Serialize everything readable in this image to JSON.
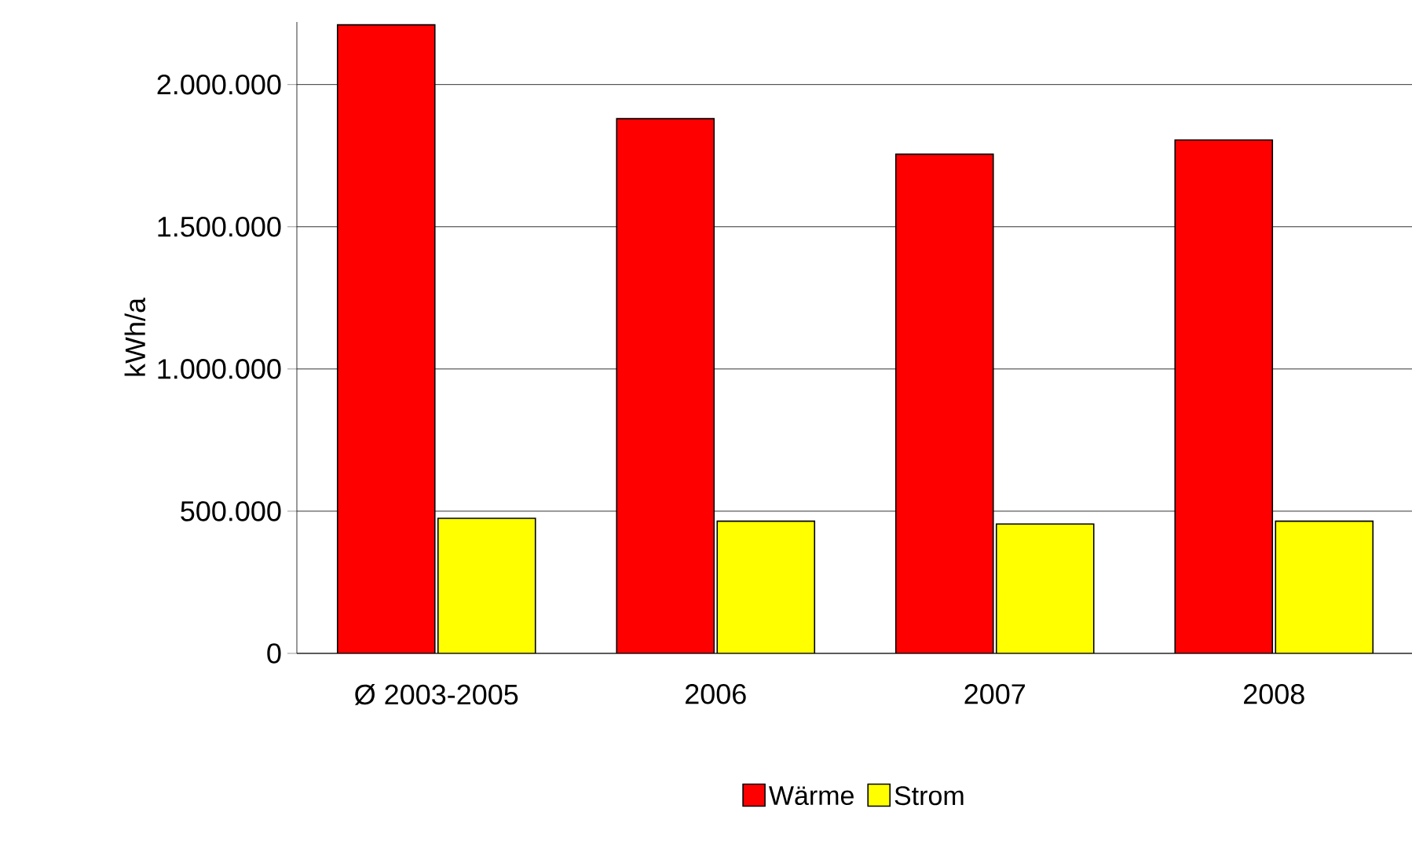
{
  "chart_data": {
    "type": "bar",
    "ylabel": "kWh/a",
    "categories": [
      "Ø 2003-2005",
      "2006",
      "2007",
      "2008"
    ],
    "series": [
      {
        "name": "Wärme",
        "color": "#ff0000",
        "values": [
          2210000,
          1880000,
          1755000,
          1805000
        ]
      },
      {
        "name": "Strom",
        "color": "#ffff00",
        "values": [
          475000,
          465000,
          455000,
          465000
        ]
      }
    ],
    "ylim": [
      0,
      2220000
    ],
    "yticks": [
      {
        "value": 0,
        "label": "0"
      },
      {
        "value": 500000,
        "label": "500.000"
      },
      {
        "value": 1000000,
        "label": "1.000.000"
      },
      {
        "value": 1500000,
        "label": "1.500.000"
      },
      {
        "value": 2000000,
        "label": "2.000.000"
      }
    ],
    "grid": "y",
    "legend": "bottom"
  }
}
